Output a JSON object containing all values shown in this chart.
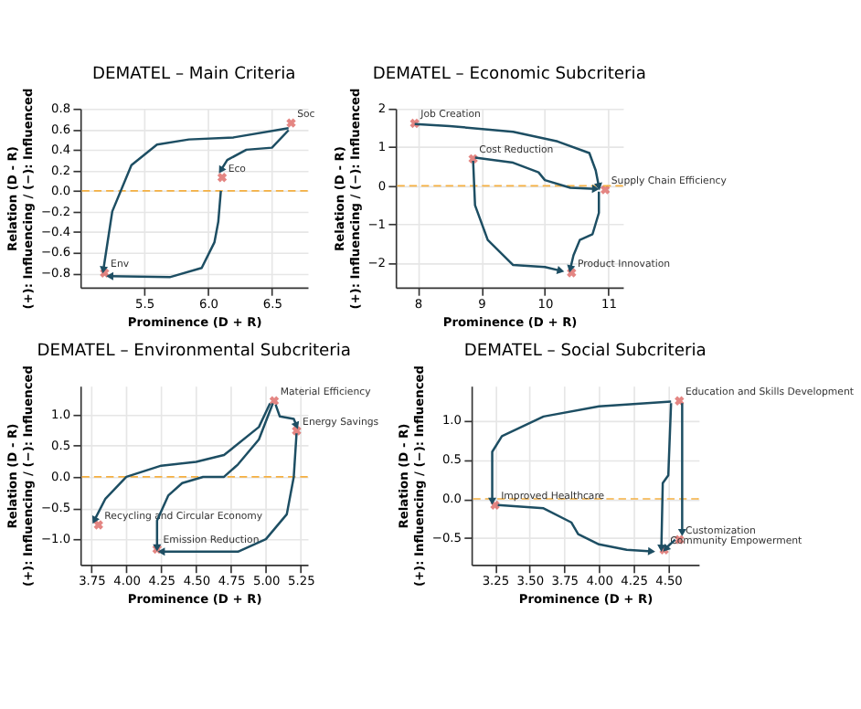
{
  "chart_data": [
    {
      "type": "scatter",
      "title": "DEMATEL – Main Criteria",
      "xlabel": "Prominence (D + R)",
      "ylabel": "Relation (D - R)\n(+): Influencing / (−): Influenced",
      "xlim": [
        5.0,
        6.78
      ],
      "xticks": [
        5.5,
        {
          "value": 6.0,
          "label": "6.0"
        },
        6.5
      ],
      "ylim": [
        -0.94,
        0.8
      ],
      "yticks": [
        {
          "value": -0.8,
          "label": "−0.8"
        },
        {
          "value": -0.6,
          "label": "−0.6"
        },
        {
          "value": -0.4,
          "label": "−0.4"
        },
        {
          "value": -0.2,
          "label": "−0.2"
        },
        {
          "value": 0.0,
          "label": "0.0"
        },
        0.2,
        0.4,
        0.6,
        0.8
      ],
      "grid": true,
      "ref_lines": [
        {
          "axis": "y",
          "value": 0,
          "color": "#f5b041",
          "line_style": "dashed"
        }
      ],
      "series": [
        {
          "type": "scatter",
          "marker": "cross",
          "color": "#d9534f",
          "x": [
            6.65,
            6.11,
            5.19
          ],
          "values": [
            0.66,
            0.13,
            -0.8
          ],
          "value_labels": [
            "Soc",
            "Eco",
            "Env"
          ]
        },
        {
          "type": "line",
          "color": "#1d4e63",
          "x": [
            6.63,
            6.2,
            5.85,
            5.6,
            5.4,
            5.25,
            5.18
          ],
          "values": [
            0.61,
            0.52,
            0.5,
            0.45,
            0.25,
            -0.2,
            -0.77
          ]
        },
        {
          "type": "line",
          "color": "#1d4e63",
          "x": [
            6.1,
            6.08,
            6.05,
            5.95,
            5.7,
            5.23
          ],
          "values": [
            0.0,
            -0.3,
            -0.5,
            -0.75,
            -0.84,
            -0.83
          ]
        },
        {
          "type": "line",
          "color": "#1d4e63",
          "x": [
            6.63,
            6.5,
            6.3,
            6.15,
            6.1
          ],
          "values": [
            0.59,
            0.42,
            0.4,
            0.3,
            0.2
          ]
        }
      ]
    },
    {
      "type": "scatter",
      "title": "DEMATEL – Economic Subcriteria",
      "xlabel": "Prominence (D + R)",
      "ylabel": "Relation (D - R)\n(+): Influencing / (−): Influenced",
      "xlim": [
        7.65,
        11.23
      ],
      "xticks": [
        8,
        9,
        10,
        11
      ],
      "ylim": [
        -2.63,
        2.0
      ],
      "yticks": [
        {
          "value": -2,
          "label": "−2"
        },
        {
          "value": -1,
          "label": "−1"
        },
        0,
        1,
        2
      ],
      "grid": true,
      "ref_lines": [
        {
          "axis": "y",
          "value": 0,
          "color": "#f5b041",
          "line_style": "dashed"
        }
      ],
      "series": [
        {
          "type": "scatter",
          "marker": "cross",
          "color": "#d9534f",
          "x": [
            7.95,
            8.87,
            10.95,
            10.42
          ],
          "values": [
            1.62,
            0.7,
            -0.1,
            -2.25
          ],
          "value_labels": [
            "Job Creation",
            "Cost Reduction",
            "Supply Chain Efficiency",
            "Product Innovation"
          ]
        },
        {
          "type": "line",
          "color": "#1d4e63",
          "x": [
            7.95,
            8.5,
            9.5,
            10.2,
            10.7,
            10.8,
            10.85
          ],
          "values": [
            1.6,
            1.55,
            1.4,
            1.15,
            0.85,
            0.4,
            -0.02
          ]
        },
        {
          "type": "line",
          "color": "#1d4e63",
          "x": [
            8.9,
            9.5,
            9.9,
            10.0,
            10.4,
            10.8
          ],
          "values": [
            0.73,
            0.6,
            0.35,
            0.15,
            -0.05,
            -0.08
          ]
        },
        {
          "type": "line",
          "color": "#1d4e63",
          "x": [
            8.87,
            8.9,
            9.1,
            9.5,
            10.0,
            10.25
          ],
          "values": [
            0.65,
            -0.5,
            -1.4,
            -2.05,
            -2.1,
            -2.2
          ]
        },
        {
          "type": "line",
          "color": "#1d4e63",
          "x": [
            10.85,
            10.85,
            10.75,
            10.55,
            10.45,
            10.4
          ],
          "values": [
            -0.15,
            -0.7,
            -1.25,
            -1.4,
            -1.8,
            -2.15
          ]
        }
      ]
    },
    {
      "type": "scatter",
      "title": "DEMATEL – Environmental Subcriteria",
      "xlabel": "Prominence (D + R)",
      "ylabel": "Relation (D - R)\n(+): Influencing / (−): Influenced",
      "xlim": [
        3.67,
        5.3
      ],
      "xticks": [
        {
          "value": 3.75,
          "label": "3.75"
        },
        {
          "value": 4.0,
          "label": "4.00"
        },
        {
          "value": 4.25,
          "label": "4.25"
        },
        {
          "value": 4.5,
          "label": "4.50"
        },
        {
          "value": 4.75,
          "label": "4.75"
        },
        {
          "value": 5.0,
          "label": "5.00"
        },
        {
          "value": 5.25,
          "label": "5.25"
        }
      ],
      "ylim": [
        -1.41,
        1.46
      ],
      "yticks": [
        {
          "value": -1.0,
          "label": "−1.0"
        },
        {
          "value": -0.5,
          "label": "−0.5"
        },
        {
          "value": 0.0,
          "label": "0.0"
        },
        {
          "value": 0.5,
          "label": "0.5"
        },
        {
          "value": 1.0,
          "label": "1.0"
        }
      ],
      "grid": true,
      "ref_lines": [
        {
          "axis": "y",
          "value": 0,
          "color": "#f5b041",
          "line_style": "dashed"
        }
      ],
      "series": [
        {
          "type": "scatter",
          "marker": "cross",
          "color": "#d9534f",
          "x": [
            5.06,
            5.22,
            3.8,
            4.22
          ],
          "values": [
            1.22,
            0.74,
            -0.77,
            -1.16
          ],
          "value_labels": [
            "Material Efficiency",
            "Energy Savings",
            "Recycling and Circular Economy",
            "Emission Reduction"
          ]
        },
        {
          "type": "line",
          "color": "#1d4e63",
          "x": [
            5.03,
            4.95,
            4.7,
            4.5,
            4.25,
            4.0,
            3.85,
            3.77
          ],
          "values": [
            1.18,
            0.8,
            0.35,
            0.24,
            0.18,
            0.0,
            -0.35,
            -0.7
          ]
        },
        {
          "type": "line",
          "color": "#1d4e63",
          "x": [
            5.05,
            4.95,
            4.8,
            4.7,
            4.55,
            4.4,
            4.3,
            4.22,
            4.22
          ],
          "values": [
            1.18,
            0.6,
            0.2,
            0.0,
            0.0,
            -0.1,
            -0.3,
            -0.7,
            -1.14
          ]
        },
        {
          "type": "line",
          "color": "#1d4e63",
          "x": [
            5.07,
            5.1,
            5.2,
            5.22
          ],
          "values": [
            1.16,
            0.97,
            0.93,
            0.82
          ]
        },
        {
          "type": "line",
          "color": "#1d4e63",
          "x": [
            5.22,
            5.2,
            5.15,
            5.0,
            4.8,
            4.25
          ],
          "values": [
            0.7,
            0.0,
            -0.6,
            -1.0,
            -1.2,
            -1.2
          ]
        }
      ]
    },
    {
      "type": "scatter",
      "title": "DEMATEL – Social Subcriteria",
      "xlabel": "Prominence (D + R)",
      "ylabel": "Relation (D - R)\n(+): Influencing / (−): Influenced",
      "xlim": [
        3.08,
        4.72
      ],
      "xticks": [
        {
          "value": 3.25,
          "label": "3.25"
        },
        {
          "value": 3.5,
          "label": "3.50"
        },
        {
          "value": 3.75,
          "label": "3.75"
        },
        {
          "value": 4.0,
          "label": "4.00"
        },
        {
          "value": 4.25,
          "label": "4.25"
        },
        {
          "value": 4.5,
          "label": "4.50"
        }
      ],
      "ylim": [
        -0.84,
        1.44
      ],
      "yticks": [
        {
          "value": -0.5,
          "label": "−0.5"
        },
        {
          "value": 0.0,
          "label": "0.0"
        },
        {
          "value": 0.5,
          "label": "0.5"
        },
        {
          "value": 1.0,
          "label": "1.0"
        }
      ],
      "grid": true,
      "ref_lines": [
        {
          "axis": "y",
          "value": 0,
          "color": "#f5b041",
          "line_style": "dashed"
        }
      ],
      "series": [
        {
          "type": "scatter",
          "marker": "cross",
          "color": "#d9534f",
          "x": [
            4.58,
            3.25,
            4.58,
            4.47
          ],
          "values": [
            1.25,
            -0.08,
            -0.52,
            -0.65
          ],
          "value_labels": [
            "Education and Skills Development",
            "Improved Healthcare",
            "Customization",
            "Community Empowerment"
          ]
        },
        {
          "type": "line",
          "color": "#1d4e63",
          "x": [
            4.52,
            4.0,
            3.6,
            3.3,
            3.23,
            3.23
          ],
          "values": [
            1.24,
            1.18,
            1.05,
            0.8,
            0.6,
            -0.03
          ]
        },
        {
          "type": "line",
          "color": "#1d4e63",
          "x": [
            4.52,
            4.5,
            4.46,
            4.45
          ],
          "values": [
            1.22,
            0.3,
            0.2,
            -0.63
          ]
        },
        {
          "type": "line",
          "color": "#1d4e63",
          "x": [
            4.6,
            4.6,
            4.6
          ],
          "values": [
            1.22,
            0.0,
            -0.43
          ]
        },
        {
          "type": "line",
          "color": "#1d4e63",
          "x": [
            3.27,
            3.6,
            3.8,
            3.85,
            4.0,
            4.2,
            4.38
          ],
          "values": [
            -0.08,
            -0.12,
            -0.3,
            -0.45,
            -0.58,
            -0.65,
            -0.67
          ]
        },
        {
          "type": "line",
          "color": "#1d4e63",
          "x": [
            4.55,
            4.5,
            4.48
          ],
          "values": [
            -0.52,
            -0.6,
            -0.64
          ]
        }
      ]
    }
  ]
}
